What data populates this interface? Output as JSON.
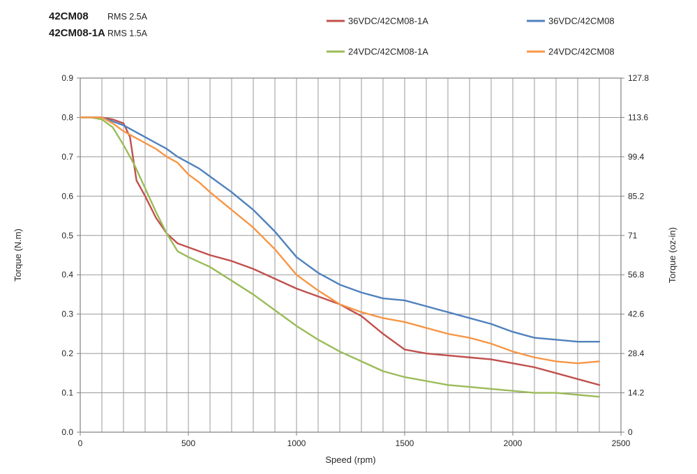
{
  "header": {
    "model1": "42CM08",
    "model1_rms": "RMS 2.5A",
    "model2": "42CM08-1A",
    "model2_rms": "RMS 1.5A"
  },
  "chart_data": {
    "type": "line",
    "title": "",
    "xlabel": "Speed (rpm)",
    "ylabel_left": "Torque (N.m)",
    "ylabel_right": "Torque (oz-in)",
    "xlim": [
      0,
      2500
    ],
    "ylim_left": [
      0,
      0.9
    ],
    "ylim_right": [
      0,
      127.8
    ],
    "x_minor_grid_step": 100,
    "grid": true,
    "x_ticks": [
      "0",
      "500",
      "1000",
      "1500",
      "2000",
      "2500"
    ],
    "y_ticks_left": [
      "0.0",
      "0.1",
      "0.2",
      "0.3",
      "0.4",
      "0.5",
      "0.6",
      "0.7",
      "0.8",
      "0.9"
    ],
    "y_ticks_right": [
      "0",
      "14.2",
      "28.4",
      "42.6",
      "56.8",
      "71",
      "85.2",
      "99.4",
      "113.6",
      "127.8"
    ],
    "legend": {
      "position": "top",
      "rows": 2,
      "cols": 2
    },
    "colors": {
      "grid": "#999999",
      "axis": "#7f7f7f",
      "red": "#c0504d",
      "blue": "#4f81bd",
      "green": "#9bbb59",
      "orange": "#f79646"
    },
    "series": [
      {
        "name": "36VDC/42CM08-1A",
        "color": "#c0504d",
        "x": [
          0,
          50,
          100,
          150,
          200,
          230,
          260,
          300,
          350,
          400,
          450,
          500,
          600,
          700,
          800,
          900,
          1000,
          1100,
          1200,
          1300,
          1400,
          1500,
          1600,
          1700,
          1800,
          1900,
          2000,
          2100,
          2200,
          2300,
          2400
        ],
        "y": [
          0.8,
          0.8,
          0.8,
          0.795,
          0.785,
          0.75,
          0.64,
          0.6,
          0.545,
          0.505,
          0.48,
          0.47,
          0.45,
          0.435,
          0.415,
          0.39,
          0.365,
          0.345,
          0.325,
          0.295,
          0.25,
          0.21,
          0.2,
          0.195,
          0.19,
          0.185,
          0.175,
          0.165,
          0.15,
          0.135,
          0.12
        ]
      },
      {
        "name": "36VDC/42CM08",
        "color": "#4f81bd",
        "x": [
          0,
          50,
          100,
          150,
          200,
          250,
          300,
          350,
          400,
          450,
          500,
          550,
          600,
          700,
          800,
          900,
          1000,
          1100,
          1200,
          1300,
          1400,
          1500,
          1600,
          1700,
          1800,
          1900,
          2000,
          2100,
          2200,
          2300,
          2400
        ],
        "y": [
          0.8,
          0.8,
          0.8,
          0.79,
          0.78,
          0.765,
          0.75,
          0.735,
          0.72,
          0.7,
          0.685,
          0.67,
          0.65,
          0.61,
          0.565,
          0.51,
          0.445,
          0.405,
          0.375,
          0.355,
          0.34,
          0.335,
          0.32,
          0.305,
          0.29,
          0.275,
          0.255,
          0.24,
          0.235,
          0.23,
          0.23
        ]
      },
      {
        "name": "24VDC/42CM08-1A",
        "color": "#9bbb59",
        "x": [
          0,
          50,
          100,
          150,
          200,
          250,
          300,
          350,
          400,
          450,
          500,
          600,
          700,
          800,
          900,
          1000,
          1100,
          1200,
          1300,
          1400,
          1500,
          1600,
          1700,
          1800,
          1900,
          2000,
          2100,
          2200,
          2300,
          2400
        ],
        "y": [
          0.8,
          0.8,
          0.795,
          0.775,
          0.73,
          0.68,
          0.62,
          0.56,
          0.505,
          0.46,
          0.445,
          0.42,
          0.385,
          0.35,
          0.31,
          0.27,
          0.235,
          0.205,
          0.18,
          0.155,
          0.14,
          0.13,
          0.12,
          0.115,
          0.11,
          0.105,
          0.1,
          0.1,
          0.095,
          0.09
        ]
      },
      {
        "name": "24VDC/42CM08",
        "color": "#f79646",
        "x": [
          0,
          50,
          100,
          150,
          200,
          250,
          300,
          350,
          400,
          450,
          500,
          550,
          600,
          700,
          800,
          900,
          1000,
          1100,
          1200,
          1300,
          1400,
          1500,
          1600,
          1700,
          1800,
          1900,
          2000,
          2100,
          2200,
          2300,
          2400
        ],
        "y": [
          0.8,
          0.8,
          0.8,
          0.785,
          0.765,
          0.75,
          0.735,
          0.72,
          0.7,
          0.685,
          0.655,
          0.635,
          0.61,
          0.565,
          0.52,
          0.465,
          0.4,
          0.36,
          0.325,
          0.305,
          0.29,
          0.28,
          0.265,
          0.25,
          0.24,
          0.225,
          0.205,
          0.19,
          0.18,
          0.175,
          0.18
        ]
      }
    ]
  }
}
